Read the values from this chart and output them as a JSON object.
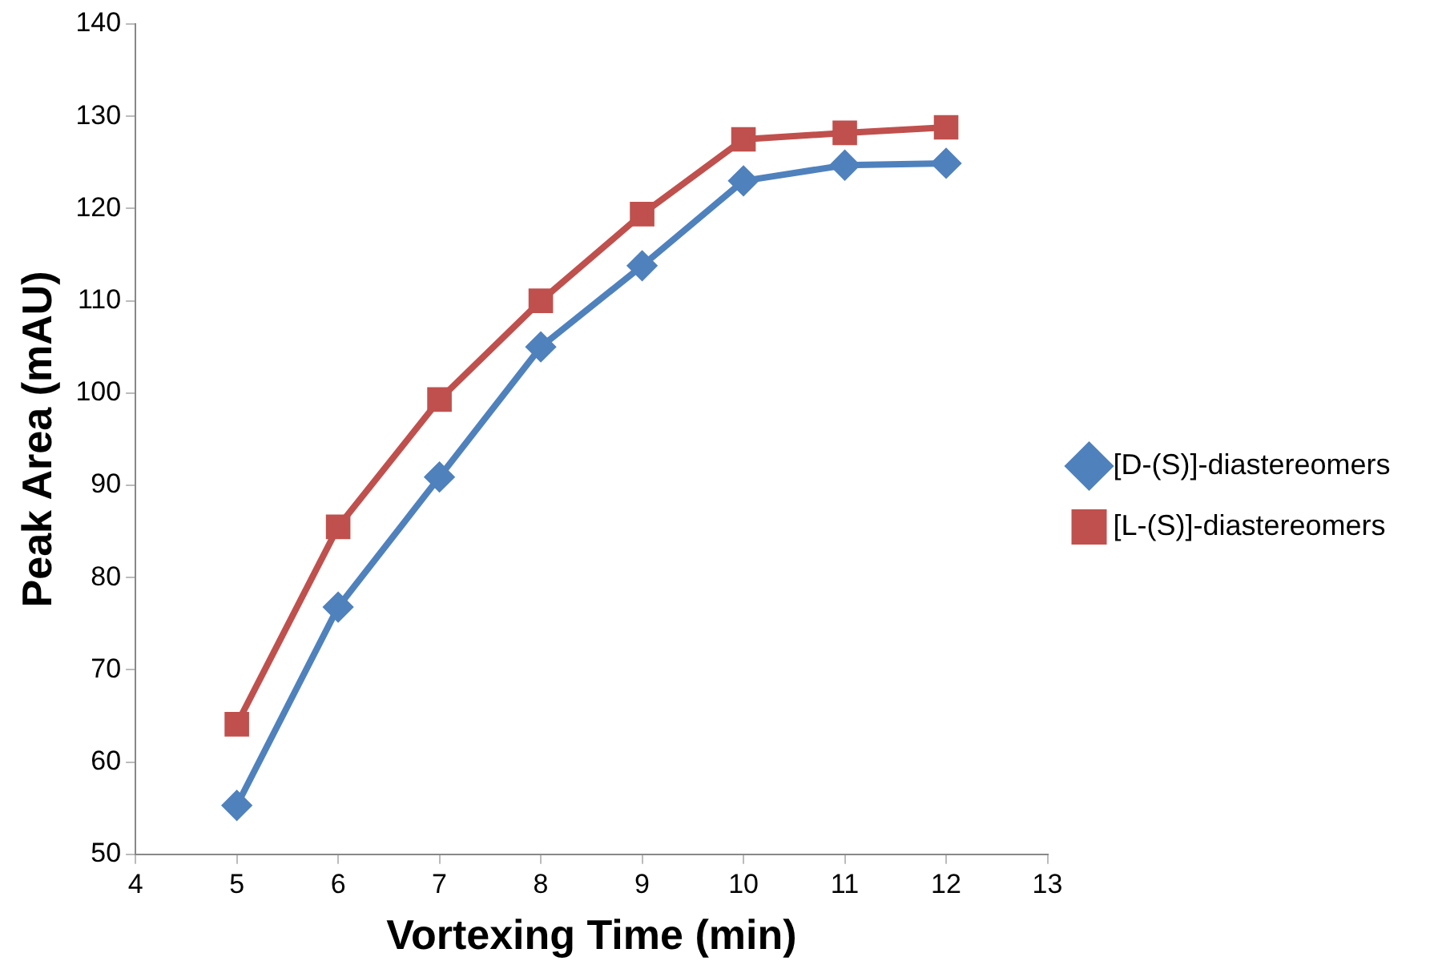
{
  "chart_data": {
    "type": "line",
    "xlabel": "Vortexing Time (min)",
    "ylabel": "Peak Area (mAU)",
    "x": [
      5,
      6,
      7,
      8,
      9,
      10,
      11,
      12
    ],
    "series": [
      {
        "name": "[D-(S)]-diastereomers",
        "color": "#4f81bd",
        "marker": "diamond",
        "values": [
          55.3,
          76.8,
          90.9,
          105,
          113.8,
          123,
          124.7,
          124.9
        ]
      },
      {
        "name": "[L-(S)]-diastereomers",
        "color": "#c0504d",
        "marker": "square",
        "values": [
          64.1,
          85.5,
          99.3,
          110,
          119.4,
          127.5,
          128.2,
          128.8
        ]
      }
    ],
    "xlim": [
      4,
      13
    ],
    "xticks": [
      4,
      5,
      6,
      7,
      8,
      9,
      10,
      11,
      12,
      13
    ],
    "ylim": [
      50,
      140
    ],
    "yticks": [
      50,
      60,
      70,
      80,
      90,
      100,
      110,
      120,
      130,
      140
    ],
    "grid": false,
    "legend": "right",
    "line_style": "solid"
  }
}
